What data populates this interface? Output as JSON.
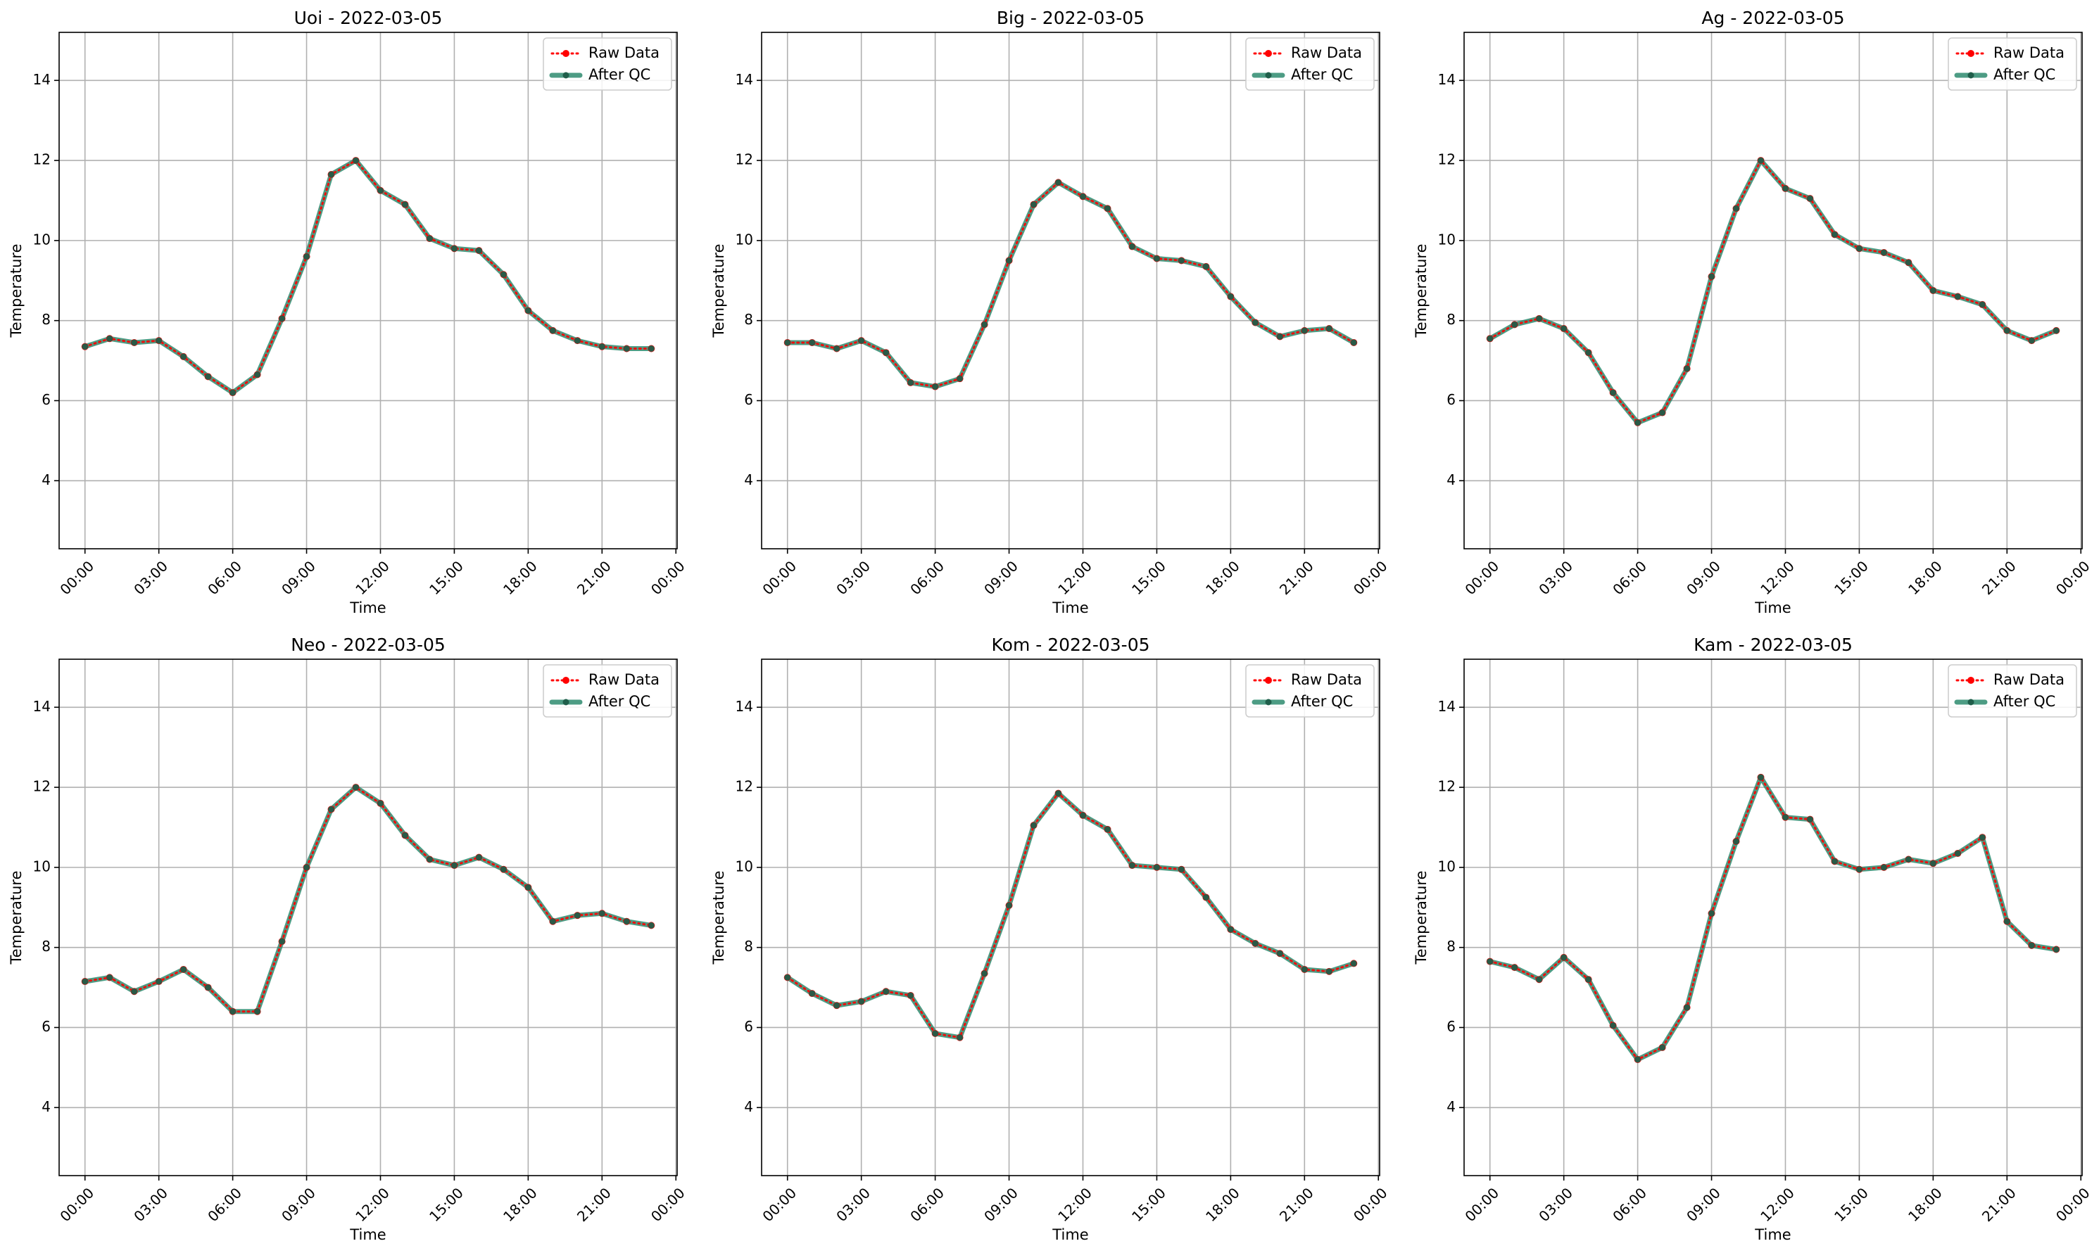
{
  "figure": {
    "background": "#ffffff",
    "raw_color": "#ff0000",
    "qc_color": "#2e8b6e",
    "qc_marker_color": "#1f5e4a",
    "grid_color": "#b0b0b0"
  },
  "chart_data": [
    {
      "type": "line",
      "title": "Uoi - 2022-03-05",
      "xlabel": "Time",
      "ylabel": "Temperature",
      "xlim": [
        -1.05,
        24.05
      ],
      "ylim": [
        2.3,
        15.2
      ],
      "xticks": [
        0,
        3,
        6,
        9,
        12,
        15,
        18,
        21,
        24
      ],
      "xtick_labels": [
        "00:00",
        "03:00",
        "06:00",
        "09:00",
        "12:00",
        "15:00",
        "18:00",
        "21:00",
        "00:00"
      ],
      "yticks": [
        4,
        6,
        8,
        10,
        12,
        14
      ],
      "ytick_labels": [
        "4",
        "6",
        "8",
        "10",
        "12",
        "14"
      ],
      "grid": true,
      "legend": "top-right",
      "x": [
        0,
        1,
        2,
        3,
        4,
        5,
        6,
        7,
        8,
        9,
        10,
        11,
        12,
        13,
        14,
        15,
        16,
        17,
        18,
        19,
        20,
        21,
        22,
        23
      ],
      "series": [
        {
          "name": "Raw Data",
          "style": "dotted",
          "marker": "circle",
          "color": "#ff0000",
          "values": [
            7.35,
            7.55,
            7.45,
            7.5,
            7.1,
            6.6,
            6.2,
            6.65,
            8.05,
            9.6,
            11.65,
            12.0,
            11.25,
            10.9,
            10.05,
            9.8,
            9.75,
            9.15,
            8.25,
            7.75,
            7.5,
            7.35,
            7.3,
            7.3
          ]
        },
        {
          "name": "After QC",
          "style": "solid",
          "marker": "circle",
          "color": "#2e8b6e",
          "values": [
            7.35,
            7.55,
            7.45,
            7.5,
            7.1,
            6.6,
            6.2,
            6.65,
            8.05,
            9.6,
            11.65,
            12.0,
            11.25,
            10.9,
            10.05,
            9.8,
            9.75,
            9.15,
            8.25,
            7.75,
            7.5,
            7.35,
            7.3,
            7.3
          ]
        }
      ]
    },
    {
      "type": "line",
      "title": "Big - 2022-03-05",
      "xlabel": "Time",
      "ylabel": "Temperature",
      "xlim": [
        -1.05,
        24.05
      ],
      "ylim": [
        2.3,
        15.2
      ],
      "xticks": [
        0,
        3,
        6,
        9,
        12,
        15,
        18,
        21,
        24
      ],
      "xtick_labels": [
        "00:00",
        "03:00",
        "06:00",
        "09:00",
        "12:00",
        "15:00",
        "18:00",
        "21:00",
        "00:00"
      ],
      "yticks": [
        4,
        6,
        8,
        10,
        12,
        14
      ],
      "ytick_labels": [
        "4",
        "6",
        "8",
        "10",
        "12",
        "14"
      ],
      "grid": true,
      "legend": "top-right",
      "x": [
        0,
        1,
        2,
        3,
        4,
        5,
        6,
        7,
        8,
        9,
        10,
        11,
        12,
        13,
        14,
        15,
        16,
        17,
        18,
        19,
        20,
        21,
        22,
        23
      ],
      "series": [
        {
          "name": "Raw Data",
          "style": "dotted",
          "marker": "circle",
          "color": "#ff0000",
          "values": [
            7.45,
            7.45,
            7.3,
            7.5,
            7.2,
            6.45,
            6.35,
            6.55,
            7.9,
            9.5,
            10.9,
            11.45,
            11.1,
            10.8,
            9.85,
            9.55,
            9.5,
            9.35,
            8.6,
            7.95,
            7.6,
            7.75,
            7.8,
            7.45
          ]
        },
        {
          "name": "After QC",
          "style": "solid",
          "marker": "circle",
          "color": "#2e8b6e",
          "values": [
            7.45,
            7.45,
            7.3,
            7.5,
            7.2,
            6.45,
            6.35,
            6.55,
            7.9,
            9.5,
            10.9,
            11.45,
            11.1,
            10.8,
            9.85,
            9.55,
            9.5,
            9.35,
            8.6,
            7.95,
            7.6,
            7.75,
            7.8,
            7.45
          ]
        }
      ]
    },
    {
      "type": "line",
      "title": "Ag - 2022-03-05",
      "xlabel": "Time",
      "ylabel": "Temperature",
      "xlim": [
        -1.05,
        24.05
      ],
      "ylim": [
        2.3,
        15.2
      ],
      "xticks": [
        0,
        3,
        6,
        9,
        12,
        15,
        18,
        21,
        24
      ],
      "xtick_labels": [
        "00:00",
        "03:00",
        "06:00",
        "09:00",
        "12:00",
        "15:00",
        "18:00",
        "21:00",
        "00:00"
      ],
      "yticks": [
        4,
        6,
        8,
        10,
        12,
        14
      ],
      "ytick_labels": [
        "4",
        "6",
        "8",
        "10",
        "12",
        "14"
      ],
      "grid": true,
      "legend": "top-right",
      "x": [
        0,
        1,
        2,
        3,
        4,
        5,
        6,
        7,
        8,
        9,
        10,
        11,
        12,
        13,
        14,
        15,
        16,
        17,
        18,
        19,
        20,
        21,
        22,
        23
      ],
      "series": [
        {
          "name": "Raw Data",
          "style": "dotted",
          "marker": "circle",
          "color": "#ff0000",
          "values": [
            7.55,
            7.9,
            8.05,
            7.8,
            7.2,
            6.2,
            5.45,
            5.7,
            6.8,
            9.1,
            10.8,
            12.0,
            11.3,
            11.05,
            10.15,
            9.8,
            9.7,
            9.45,
            8.75,
            8.6,
            8.4,
            7.75,
            7.5,
            7.75
          ]
        },
        {
          "name": "After QC",
          "style": "solid",
          "marker": "circle",
          "color": "#2e8b6e",
          "values": [
            7.55,
            7.9,
            8.05,
            7.8,
            7.2,
            6.2,
            5.45,
            5.7,
            6.8,
            9.1,
            10.8,
            12.0,
            11.3,
            11.05,
            10.15,
            9.8,
            9.7,
            9.45,
            8.75,
            8.6,
            8.4,
            7.75,
            7.5,
            7.75
          ]
        }
      ]
    },
    {
      "type": "line",
      "title": "Neo - 2022-03-05",
      "xlabel": "Time",
      "ylabel": "Temperature",
      "xlim": [
        -1.05,
        24.05
      ],
      "ylim": [
        2.3,
        15.2
      ],
      "xticks": [
        0,
        3,
        6,
        9,
        12,
        15,
        18,
        21,
        24
      ],
      "xtick_labels": [
        "00:00",
        "03:00",
        "06:00",
        "09:00",
        "12:00",
        "15:00",
        "18:00",
        "21:00",
        "00:00"
      ],
      "yticks": [
        4,
        6,
        8,
        10,
        12,
        14
      ],
      "ytick_labels": [
        "4",
        "6",
        "8",
        "10",
        "12",
        "14"
      ],
      "grid": true,
      "legend": "top-right",
      "x": [
        0,
        1,
        2,
        3,
        4,
        5,
        6,
        7,
        8,
        9,
        10,
        11,
        12,
        13,
        14,
        15,
        16,
        17,
        18,
        19,
        20,
        21,
        22,
        23
      ],
      "series": [
        {
          "name": "Raw Data",
          "style": "dotted",
          "marker": "circle",
          "color": "#ff0000",
          "values": [
            7.15,
            7.25,
            6.9,
            7.15,
            7.45,
            7.0,
            6.4,
            6.4,
            8.15,
            10.0,
            11.45,
            12.0,
            11.6,
            10.8,
            10.2,
            10.05,
            10.25,
            9.95,
            9.5,
            8.65,
            8.8,
            8.85,
            8.65,
            8.55
          ]
        },
        {
          "name": "After QC",
          "style": "solid",
          "marker": "circle",
          "color": "#2e8b6e",
          "values": [
            7.15,
            7.25,
            6.9,
            7.15,
            7.45,
            7.0,
            6.4,
            6.4,
            8.15,
            10.0,
            11.45,
            12.0,
            11.6,
            10.8,
            10.2,
            10.05,
            10.25,
            9.95,
            9.5,
            8.65,
            8.8,
            8.85,
            8.65,
            8.55
          ]
        }
      ]
    },
    {
      "type": "line",
      "title": "Kom - 2022-03-05",
      "xlabel": "Time",
      "ylabel": "Temperature",
      "xlim": [
        -1.05,
        24.05
      ],
      "ylim": [
        2.3,
        15.2
      ],
      "xticks": [
        0,
        3,
        6,
        9,
        12,
        15,
        18,
        21,
        24
      ],
      "xtick_labels": [
        "00:00",
        "03:00",
        "06:00",
        "09:00",
        "12:00",
        "15:00",
        "18:00",
        "21:00",
        "00:00"
      ],
      "yticks": [
        4,
        6,
        8,
        10,
        12,
        14
      ],
      "ytick_labels": [
        "4",
        "6",
        "8",
        "10",
        "12",
        "14"
      ],
      "grid": true,
      "legend": "top-right",
      "x": [
        0,
        1,
        2,
        3,
        4,
        5,
        6,
        7,
        8,
        9,
        10,
        11,
        12,
        13,
        14,
        15,
        16,
        17,
        18,
        19,
        20,
        21,
        22,
        23
      ],
      "series": [
        {
          "name": "Raw Data",
          "style": "dotted",
          "marker": "circle",
          "color": "#ff0000",
          "values": [
            7.25,
            6.85,
            6.55,
            6.65,
            6.9,
            6.8,
            5.85,
            5.75,
            7.35,
            9.05,
            11.05,
            11.85,
            11.3,
            10.95,
            10.05,
            10.0,
            9.95,
            9.25,
            8.45,
            8.1,
            7.85,
            7.45,
            7.4,
            7.6
          ]
        },
        {
          "name": "After QC",
          "style": "solid",
          "marker": "circle",
          "color": "#2e8b6e",
          "values": [
            7.25,
            6.85,
            6.55,
            6.65,
            6.9,
            6.8,
            5.85,
            5.75,
            7.35,
            9.05,
            11.05,
            11.85,
            11.3,
            10.95,
            10.05,
            10.0,
            9.95,
            9.25,
            8.45,
            8.1,
            7.85,
            7.45,
            7.4,
            7.6
          ]
        }
      ]
    },
    {
      "type": "line",
      "title": "Kam - 2022-03-05",
      "xlabel": "Time",
      "ylabel": "Temperature",
      "xlim": [
        -1.05,
        24.05
      ],
      "ylim": [
        2.3,
        15.2
      ],
      "xticks": [
        0,
        3,
        6,
        9,
        12,
        15,
        18,
        21,
        24
      ],
      "xtick_labels": [
        "00:00",
        "03:00",
        "06:00",
        "09:00",
        "12:00",
        "15:00",
        "18:00",
        "21:00",
        "00:00"
      ],
      "yticks": [
        4,
        6,
        8,
        10,
        12,
        14
      ],
      "ytick_labels": [
        "4",
        "6",
        "8",
        "10",
        "12",
        "14"
      ],
      "grid": true,
      "legend": "top-right",
      "x": [
        0,
        1,
        2,
        3,
        4,
        5,
        6,
        7,
        8,
        9,
        10,
        11,
        12,
        13,
        14,
        15,
        16,
        17,
        18,
        19,
        20,
        21,
        22,
        23
      ],
      "series": [
        {
          "name": "Raw Data",
          "style": "dotted",
          "marker": "circle",
          "color": "#ff0000",
          "values": [
            7.65,
            7.5,
            7.2,
            7.75,
            7.2,
            6.05,
            5.2,
            5.5,
            6.5,
            8.85,
            10.65,
            12.25,
            11.25,
            11.2,
            10.15,
            9.95,
            10.0,
            10.2,
            10.1,
            10.35,
            10.75,
            8.65,
            8.05,
            7.95
          ]
        },
        {
          "name": "After QC",
          "style": "solid",
          "marker": "circle",
          "color": "#2e8b6e",
          "values": [
            7.65,
            7.5,
            7.2,
            7.75,
            7.2,
            6.05,
            5.2,
            5.5,
            6.5,
            8.85,
            10.65,
            12.25,
            11.25,
            11.2,
            10.15,
            9.95,
            10.0,
            10.2,
            10.1,
            10.35,
            10.75,
            8.65,
            8.05,
            7.95
          ]
        }
      ]
    }
  ]
}
